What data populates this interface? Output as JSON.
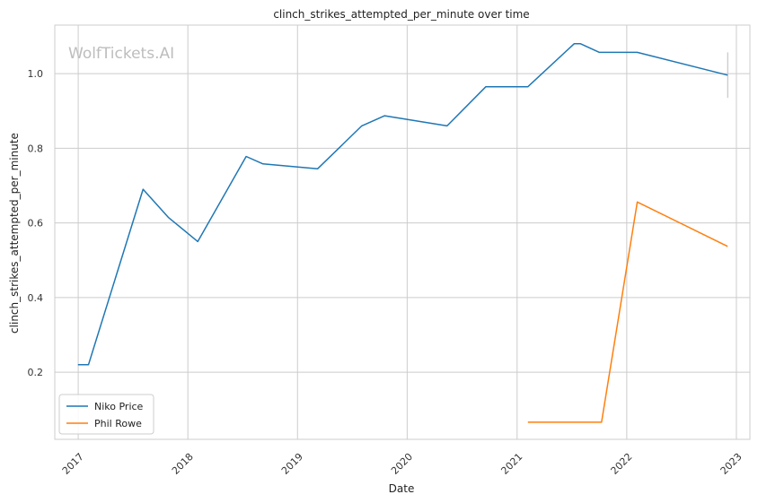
{
  "chart_data": {
    "type": "line",
    "title": "clinch_strikes_attempted_per_minute over time",
    "xlabel": "Date",
    "ylabel": "clinch_strikes_attempted_per_minute",
    "watermark": "WolfTickets.AI",
    "x_ticks": [
      "2017",
      "2018",
      "2019",
      "2020",
      "2021",
      "2022",
      "2023"
    ],
    "y_ticks": [
      "0.2",
      "0.4",
      "0.6",
      "0.8",
      "1.0"
    ],
    "xlim": [
      "2016-10-15",
      "2023-02-15"
    ],
    "ylim": [
      0.02,
      1.13
    ],
    "grid": true,
    "legend_position": "lower-left",
    "series": [
      {
        "name": "Niko Price",
        "color": "#1f77b4",
        "points": [
          [
            "2016-12-31",
            0.22
          ],
          [
            "2017-02-04",
            0.22
          ],
          [
            "2017-08-05",
            0.69
          ],
          [
            "2017-10-28",
            0.615
          ],
          [
            "2018-02-03",
            0.55
          ],
          [
            "2018-07-14",
            0.778
          ],
          [
            "2018-09-08",
            0.758
          ],
          [
            "2019-03-09",
            0.745
          ],
          [
            "2019-08-03",
            0.86
          ],
          [
            "2019-10-18",
            0.887
          ],
          [
            "2020-05-13",
            0.86
          ],
          [
            "2020-09-19",
            0.965
          ],
          [
            "2021-02-06",
            0.965
          ],
          [
            "2021-07-10",
            1.08
          ],
          [
            "2021-07-31",
            1.08
          ],
          [
            "2021-10-02",
            1.057
          ],
          [
            "2022-02-05",
            1.057
          ],
          [
            "2022-12-03",
            0.996
          ]
        ]
      },
      {
        "name": "Phil Rowe",
        "color": "#ff7f0e",
        "points": [
          [
            "2021-02-06",
            0.066
          ],
          [
            "2021-10-09",
            0.066
          ],
          [
            "2022-02-05",
            0.656
          ],
          [
            "2022-12-03",
            0.537
          ]
        ]
      }
    ],
    "error_bar": {
      "x": "2022-12-03",
      "y_low": 0.935,
      "y_high": 1.057,
      "color": "#bbbbbb"
    }
  }
}
